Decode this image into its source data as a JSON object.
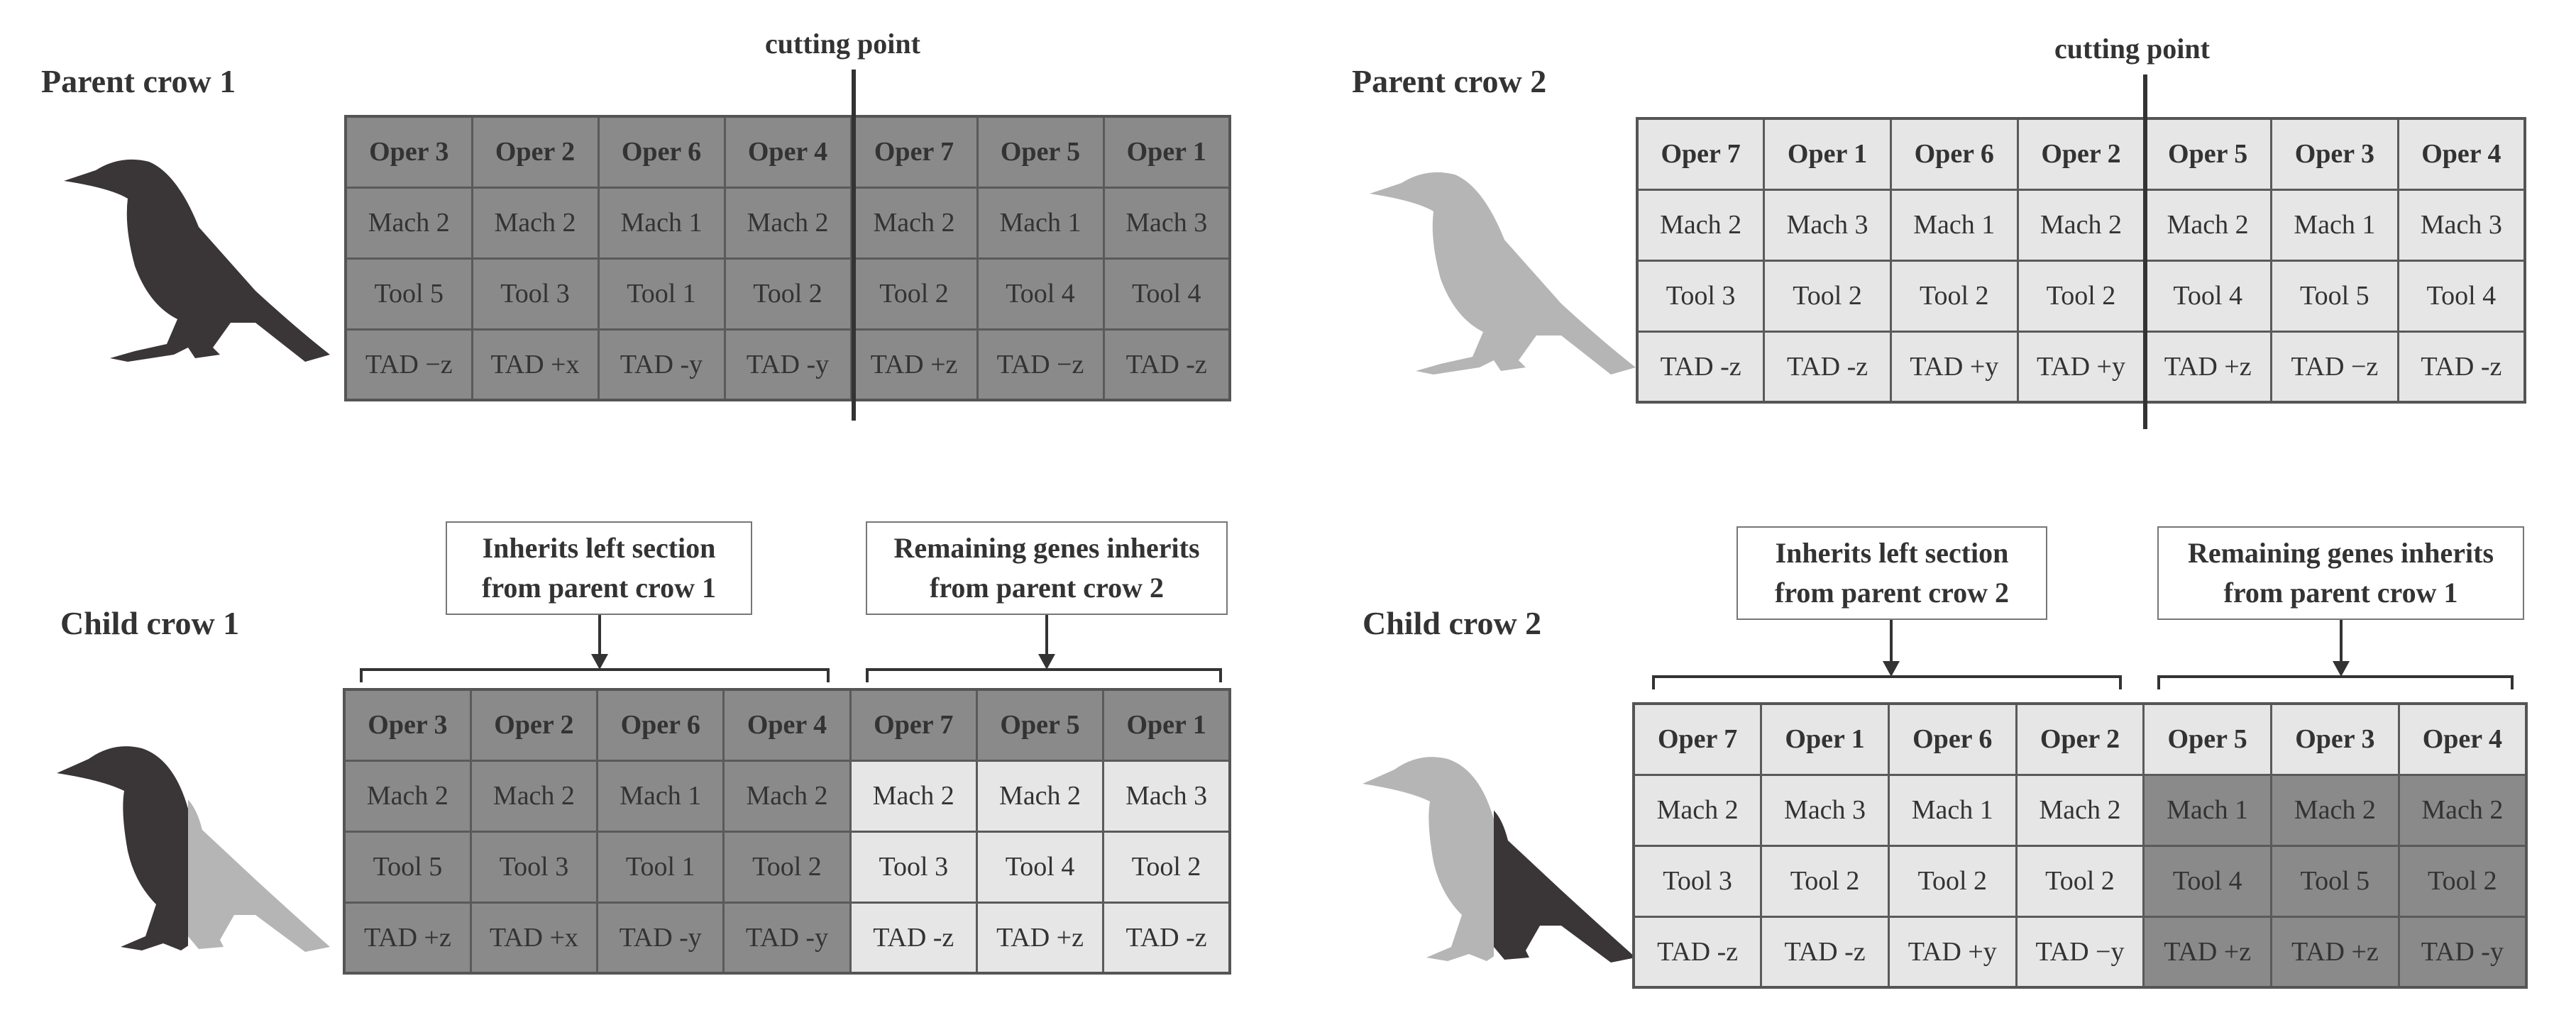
{
  "colors": {
    "dark": "#8a8a8a",
    "light": "#e6e6e6",
    "crow_dark": "#3a3536",
    "crow_light": "#b5b5b5"
  },
  "cutting_label": "cutting point",
  "parent1": {
    "title": "Parent crow 1",
    "header": [
      "Oper 3",
      "Oper 2",
      "Oper 6",
      "Oper 4",
      "Oper 7",
      "Oper 5",
      "Oper 1"
    ],
    "rows": [
      [
        "Mach 2",
        "Mach 2",
        "Mach 1",
        "Mach 2",
        "Mach 2",
        "Mach 1",
        "Mach 3"
      ],
      [
        "Tool 5",
        "Tool 3",
        "Tool 1",
        "Tool 2",
        "Tool 2",
        "Tool 4",
        "Tool 4"
      ],
      [
        "TAD −z",
        "TAD +x",
        "TAD -y",
        "TAD -y",
        "TAD +z",
        "TAD −z",
        "TAD -z"
      ]
    ]
  },
  "parent2": {
    "title": "Parent crow 2",
    "header": [
      "Oper 7",
      "Oper 1",
      "Oper 6",
      "Oper 2",
      "Oper 5",
      "Oper 3",
      "Oper 4"
    ],
    "rows": [
      [
        "Mach 2",
        "Mach 3",
        "Mach 1",
        "Mach 2",
        "Mach 2",
        "Mach 1",
        "Mach 3"
      ],
      [
        "Tool 3",
        "Tool 2",
        "Tool 2",
        "Tool 2",
        "Tool 4",
        "Tool 5",
        "Tool 4"
      ],
      [
        "TAD -z",
        "TAD -z",
        "TAD +y",
        "TAD +y",
        "TAD +z",
        "TAD −z",
        "TAD -z"
      ]
    ]
  },
  "child1": {
    "title": "Child crow 1",
    "callout_left": [
      "Inherits left section",
      "from parent crow 1"
    ],
    "callout_right": [
      "Remaining genes inherits",
      "from parent crow 2"
    ],
    "header": [
      "Oper 3",
      "Oper 2",
      "Oper 6",
      "Oper 4",
      "Oper 7",
      "Oper 5",
      "Oper 1"
    ],
    "rows": [
      [
        "Mach 2",
        "Mach 2",
        "Mach 1",
        "Mach 2",
        "Mach 2",
        "Mach 2",
        "Mach 3"
      ],
      [
        "Tool 5",
        "Tool 3",
        "Tool 1",
        "Tool 2",
        "Tool 3",
        "Tool 4",
        "Tool 2"
      ],
      [
        "TAD +z",
        "TAD +x",
        "TAD -y",
        "TAD -y",
        "TAD -z",
        "TAD +z",
        "TAD -z"
      ]
    ]
  },
  "child2": {
    "title": "Child crow 2",
    "callout_left": [
      "Inherits left section",
      "from parent crow 2"
    ],
    "callout_right": [
      "Remaining genes inherits",
      "from parent crow 1"
    ],
    "header": [
      "Oper 7",
      "Oper 1",
      "Oper 6",
      "Oper 2",
      "Oper 5",
      "Oper 3",
      "Oper 4"
    ],
    "rows": [
      [
        "Mach 2",
        "Mach 3",
        "Mach 1",
        "Mach 2",
        "Mach 1",
        "Mach 2",
        "Mach 2"
      ],
      [
        "Tool 3",
        "Tool 2",
        "Tool 2",
        "Tool 2",
        "Tool 4",
        "Tool 5",
        "Tool 2"
      ],
      [
        "TAD -z",
        "TAD -z",
        "TAD +y",
        "TAD −y",
        "TAD +z",
        "TAD +z",
        "TAD -y"
      ]
    ]
  }
}
